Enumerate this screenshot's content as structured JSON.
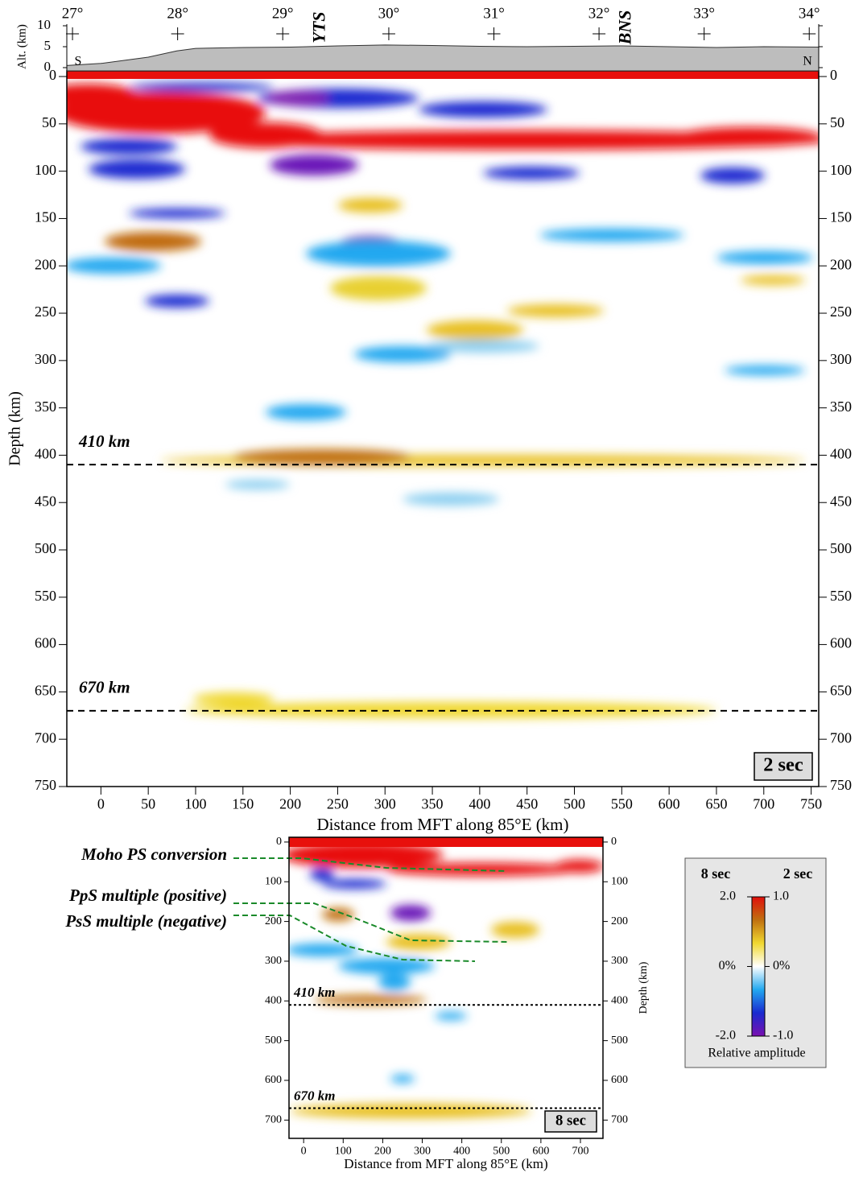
{
  "chart_data": [
    {
      "type": "heatmap",
      "panel_label": "2 sec",
      "xlabel": "Distance from MFT along 85°E (km)",
      "ylabel": "Depth (km)",
      "xlim": [
        -36,
        758
      ],
      "ylim": [
        -6,
        750
      ],
      "xticks": [
        0,
        50,
        100,
        150,
        200,
        250,
        300,
        350,
        400,
        450,
        500,
        550,
        600,
        650,
        700,
        750
      ],
      "yticks": [
        0,
        50,
        100,
        150,
        200,
        250,
        300,
        350,
        400,
        450,
        500,
        550,
        600,
        650,
        700,
        750
      ],
      "x2ticks": [
        {
          "value": -30,
          "label": "27°"
        },
        {
          "value": 81,
          "label": "28°"
        },
        {
          "value": 192,
          "label": "29°"
        },
        {
          "value": 304,
          "label": "30°"
        },
        {
          "value": 415,
          "label": "31°"
        },
        {
          "value": 526,
          "label": "32°"
        },
        {
          "value": 637,
          "label": "33°"
        },
        {
          "value": 748,
          "label": "34°"
        }
      ],
      "annotations": [
        {
          "x": 232,
          "text": "YTS"
        },
        {
          "x": 555,
          "text": "BNS"
        }
      ],
      "lines": [
        {
          "value": 410,
          "label": "410 km"
        },
        {
          "value": 670,
          "label": "670 km"
        }
      ],
      "elevation": {
        "ylabel": "Alt. (km)",
        "ylim": [
          0,
          10
        ],
        "yticks": [
          0,
          5,
          10
        ],
        "left_label": "S",
        "right_label": "N",
        "x": [
          -36,
          0,
          50,
          80,
          100,
          150,
          200,
          250,
          300,
          350,
          400,
          450,
          500,
          550,
          600,
          650,
          700,
          758
        ],
        "values": [
          0.5,
          1,
          2.5,
          4,
          4.6,
          4.8,
          4.9,
          5.2,
          5.4,
          5.3,
          5.1,
          5,
          5.1,
          5.2,
          5,
          4.8,
          5,
          4.9
        ]
      }
    },
    {
      "type": "heatmap",
      "panel_label": "8 sec",
      "xlabel": "Distance from MFT along 85°E (km)",
      "ylabel": "Depth (km)",
      "xlim": [
        -37,
        757
      ],
      "ylim": [
        -12,
        746
      ],
      "xticks": [
        0,
        100,
        200,
        300,
        400,
        500,
        600,
        700
      ],
      "yticks": [
        0,
        100,
        200,
        300,
        400,
        500,
        600,
        700
      ],
      "lines": [
        {
          "value": 410,
          "label": "410 km"
        },
        {
          "value": 670,
          "label": "670 km"
        }
      ],
      "callouts": [
        "Moho PS conversion",
        "PpS multiple (positive)",
        "PsS multiple (negative)"
      ]
    }
  ],
  "colorbar": {
    "title": "Relative amplitude",
    "left_title": "8 sec",
    "right_title": "2 sec",
    "left_ticks": [
      {
        "value": 2,
        "label": "2.0"
      },
      {
        "value": 0,
        "label": "0%"
      },
      {
        "value": -2,
        "label": "-2.0"
      }
    ],
    "right_ticks": [
      {
        "value": 1,
        "label": "1.0"
      },
      {
        "value": 0,
        "label": "0%"
      },
      {
        "value": -1,
        "label": "-1.0"
      }
    ],
    "colors": [
      "#7a10b0",
      "#1a2ad0",
      "#22a8f0",
      "#ffffff",
      "#f0d830",
      "#c07010",
      "#e0100c"
    ]
  }
}
